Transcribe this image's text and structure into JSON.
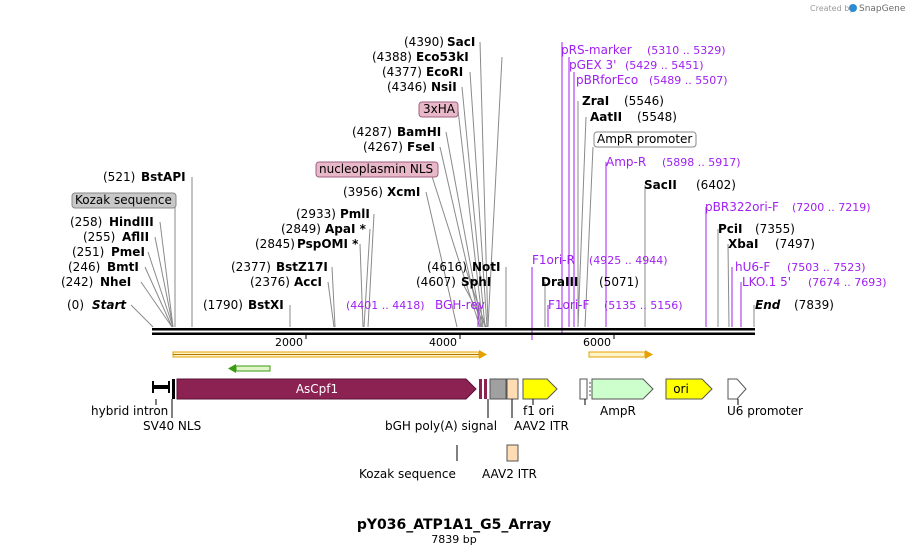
{
  "watermark": {
    "prefix": "Created by",
    "brand": "SnapGene"
  },
  "map": {
    "title": "pY036_ATP1A1_G5_Array",
    "length_label": "7839 bp",
    "axis_ticks": [
      "2000",
      "4000",
      "6000"
    ]
  },
  "colors": {
    "enzyme_text": "#000000",
    "primer_text": "#a020f0",
    "ascpf1": "#8b2252",
    "f1ori": "#ffff00",
    "ampr": "#ccffcc",
    "aav2": "#ffdcb4",
    "bgh": "#a0a0a0",
    "orf_arrow": "#e6a000",
    "orf_green": "#3a9a10"
  },
  "sites": [
    {
      "pos": "(4390)",
      "name": "SacI"
    },
    {
      "pos": "(4388)",
      "name": "Eco53kI"
    },
    {
      "pos": "(4377)",
      "name": "EcoRI"
    },
    {
      "pos": "(4346)",
      "name": "NsiI"
    },
    {
      "pos": "(4287)",
      "name": "BamHI"
    },
    {
      "pos": "(4267)",
      "name": "FseI"
    },
    {
      "pos": "(3956)",
      "name": "XcmI"
    },
    {
      "pos": "(521)",
      "name": "BstAPI"
    },
    {
      "pos": "(2933)",
      "name": "PmlI"
    },
    {
      "pos": "(2849)",
      "name": "ApaI *"
    },
    {
      "pos": "(2845)",
      "name": "PspOMI *"
    },
    {
      "pos": "(258)",
      "name": "HindIII"
    },
    {
      "pos": "(255)",
      "name": "AflII"
    },
    {
      "pos": "(251)",
      "name": "PmeI"
    },
    {
      "pos": "(2377)",
      "name": "BstZ17I"
    },
    {
      "pos": "(2376)",
      "name": "AccI"
    },
    {
      "pos": "(246)",
      "name": "BmtI"
    },
    {
      "pos": "(242)",
      "name": "NheI"
    },
    {
      "pos": "(0)",
      "name": "Start"
    },
    {
      "pos": "(1790)",
      "name": "BstXI"
    },
    {
      "pos": "(4616)",
      "name": "NotI"
    },
    {
      "pos": "(4607)",
      "name": "SphI"
    },
    {
      "pos": "(5546)",
      "name": "ZraI"
    },
    {
      "pos": "(5548)",
      "name": "AatII"
    },
    {
      "pos": "(6402)",
      "name": "SacII"
    },
    {
      "pos": "(7355)",
      "name": "PciI"
    },
    {
      "pos": "(7497)",
      "name": "XbaI"
    },
    {
      "pos": "(5071)",
      "name": "DraIII"
    },
    {
      "pos": "(7839)",
      "name": "End"
    }
  ],
  "primers": [
    {
      "name": "pRS-marker",
      "range": "(5310 .. 5329)"
    },
    {
      "name": "pGEX 3'",
      "range": "(5429 .. 5451)"
    },
    {
      "name": "pBRforEco",
      "range": "(5489 .. 5507)"
    },
    {
      "name": "Amp-R",
      "range": "(5898 .. 5917)"
    },
    {
      "name": "pBR322ori-F",
      "range": "(7200 .. 7219)"
    },
    {
      "name": "hU6-F",
      "range": "(7503 .. 7523)"
    },
    {
      "name": "LKO.1 5'",
      "range": "(7674 .. 7693)"
    },
    {
      "name": "F1ori-R",
      "range": "(4925 .. 4944)"
    },
    {
      "name": "F1ori-F",
      "range": "(5135 .. 5156)"
    },
    {
      "name": "BGH-rev",
      "range": "(4401 .. 4418)"
    }
  ],
  "boxed_labels": {
    "kozak_top": "Kozak sequence",
    "threexha": "3xHA",
    "nucleoplasmin": "nucleoplasmin NLS",
    "ampr_promoter": "AmpR promoter"
  },
  "features": {
    "ascpf1": "AsCpf1",
    "ori": "ori",
    "hybrid_intron": "hybrid intron",
    "sv40": "SV40 NLS",
    "bgh": "bGH poly(A) signal",
    "f1ori": "f1 ori",
    "aav2_1": "AAV2 ITR",
    "ampr": "AmpR",
    "u6": "U6 promoter",
    "kozak_bottom": "Kozak sequence",
    "aav2_2": "AAV2 ITR"
  }
}
